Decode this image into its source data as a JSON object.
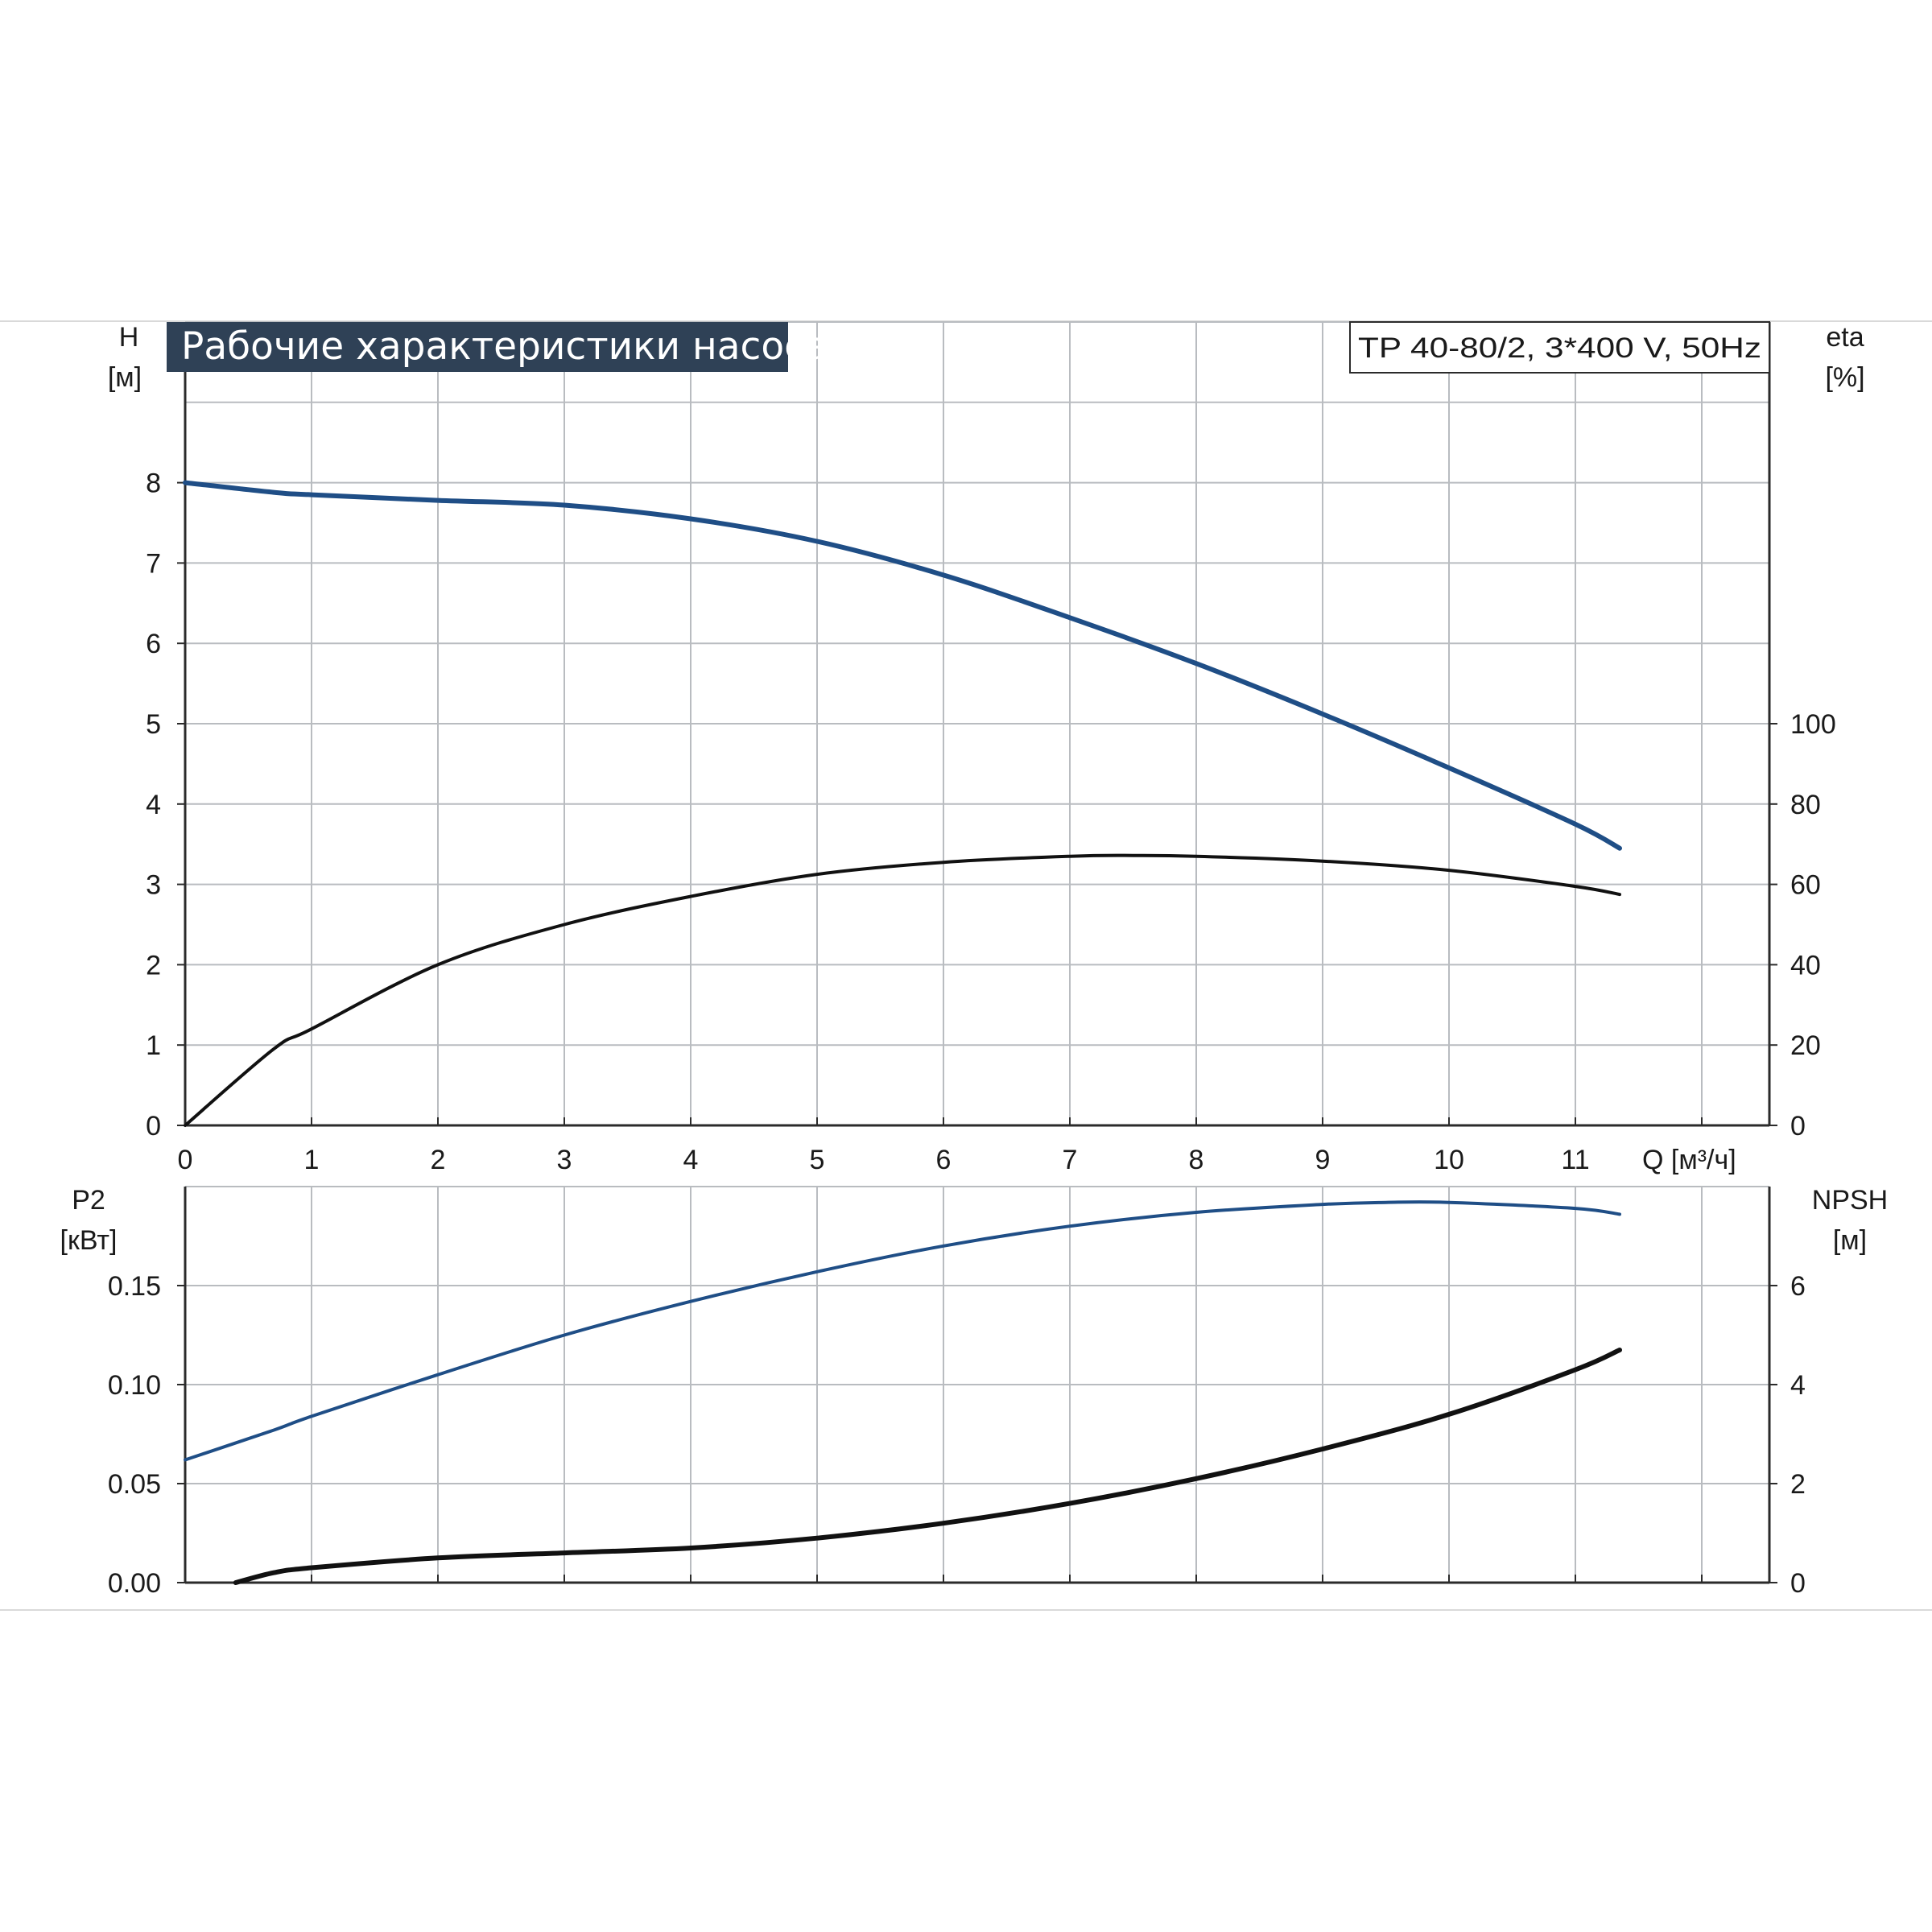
{
  "page": {
    "title": "Рабочие характеристики насоса",
    "model_label": "TP 40-80/2, 3*400 V, 50Hz"
  },
  "colors": {
    "grid": "#b9bcc0",
    "axis": "#2b2b2b",
    "title_bg": "#2f4156",
    "title_text": "#ffffff",
    "blue_curve": "#1f4e86",
    "black_curve": "#111111",
    "frame_line": "#d9d9d9"
  },
  "chart_data": [
    {
      "type": "line",
      "panel": "upper",
      "xlabel": "Q [м³/ч]",
      "x_ticks": [
        "0",
        "1",
        "2",
        "3",
        "4",
        "5",
        "6",
        "7",
        "8",
        "9",
        "10",
        "11"
      ],
      "xlim": [
        0,
        12.5
      ],
      "left_axis": {
        "label_line1": "H",
        "label_line2": "[м]",
        "ylim": [
          0,
          10
        ],
        "ticks": [
          "0",
          "1",
          "2",
          "3",
          "4",
          "5",
          "6",
          "7",
          "8"
        ]
      },
      "right_axis": {
        "label_line1": "eta",
        "label_line2": "[%]",
        "ylim": [
          0,
          200
        ],
        "ticks": [
          "0",
          "20",
          "40",
          "60",
          "80",
          "100"
        ]
      },
      "grid": true,
      "series": [
        {
          "axis": "left",
          "color": "#1f4e86",
          "x": [
            0,
            0.7,
            1,
            2,
            3,
            4,
            5,
            6,
            7,
            8,
            9,
            10,
            11,
            11.35
          ],
          "y": [
            8.0,
            7.88,
            7.85,
            7.78,
            7.72,
            7.55,
            7.27,
            6.85,
            6.32,
            5.75,
            5.12,
            4.45,
            3.75,
            3.45
          ]
        },
        {
          "axis": "right",
          "color": "#111111",
          "x": [
            0,
            0.7,
            1,
            2,
            3,
            4,
            5,
            6,
            7,
            7.5,
            8,
            9,
            10,
            11,
            11.35
          ],
          "y": [
            0,
            19,
            24,
            40,
            50,
            57,
            62.5,
            65.5,
            67,
            67.2,
            67,
            65.8,
            63.5,
            59.5,
            57.5
          ]
        }
      ]
    },
    {
      "type": "line",
      "panel": "lower",
      "x_ticks": [
        "0",
        "1",
        "2",
        "3",
        "4",
        "5",
        "6",
        "7",
        "8",
        "9",
        "10",
        "11"
      ],
      "xlim": [
        0,
        12.5
      ],
      "left_axis": {
        "label_line1": "P2",
        "label_line2": "[кВт]",
        "ylim": [
          0,
          0.2
        ],
        "ticks": [
          "0.00",
          "0.05",
          "0.10",
          "0.15"
        ]
      },
      "right_axis": {
        "label_line1": "NPSH",
        "label_line2": "[м]",
        "ylim": [
          0,
          8
        ],
        "ticks": [
          "0",
          "2",
          "4",
          "6"
        ]
      },
      "grid": true,
      "series": [
        {
          "axis": "left",
          "color": "#1f4e86",
          "x": [
            0,
            0.7,
            1,
            2,
            3,
            4,
            5,
            6,
            7,
            8,
            9,
            9.5,
            10,
            11,
            11.35
          ],
          "y": [
            0.062,
            0.077,
            0.084,
            0.105,
            0.125,
            0.142,
            0.157,
            0.17,
            0.18,
            0.187,
            0.191,
            0.192,
            0.192,
            0.189,
            0.186
          ]
        },
        {
          "axis": "right",
          "color": "#111111",
          "x": [
            0.4,
            0.7,
            1,
            2,
            3,
            4,
            5,
            6,
            7,
            8,
            9,
            10,
            11,
            11.35
          ],
          "y": [
            0,
            0.2,
            0.3,
            0.5,
            0.6,
            0.7,
            0.9,
            1.2,
            1.6,
            2.1,
            2.7,
            3.4,
            4.3,
            4.7
          ]
        }
      ]
    }
  ]
}
